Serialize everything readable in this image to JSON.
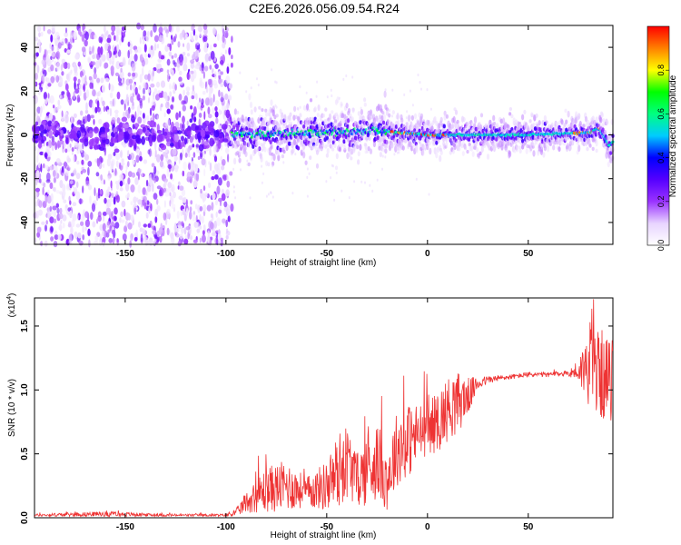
{
  "title": "C2E6.2026.056.09.54.R24",
  "chart_data": [
    {
      "type": "heatmap",
      "xlabel": "Height of straight line (km)",
      "ylabel": "Frequency (Hz)",
      "xlim": [
        -195,
        92
      ],
      "ylim": [
        -50,
        50
      ],
      "xticks": [
        -150,
        -100,
        -50,
        0,
        50
      ],
      "yticks": [
        -40,
        -20,
        0,
        20,
        40
      ],
      "colorbar": {
        "label": "Normalized spectral amplitude",
        "range": [
          0.0,
          1.0
        ],
        "ticks": [
          0.0,
          0.2,
          0.4,
          0.6,
          0.8
        ],
        "colormap": [
          "#ffffff",
          "#e8d4ff",
          "#9a33ff",
          "#5500ff",
          "#0000ff",
          "#00ccff",
          "#00ff80",
          "#00ff00",
          "#ffff00",
          "#ff8000",
          "#ff0000"
        ]
      },
      "description_points": {
        "noise_region_x": [
          -195,
          -97
        ],
        "ridge_x": [
          -95,
          -25,
          0,
          50,
          80,
          85,
          88,
          90,
          92
        ],
        "ridge_freq_hz": [
          0,
          2,
          0,
          0,
          1,
          3,
          -1,
          -5,
          -3
        ]
      }
    },
    {
      "type": "line",
      "xlabel": "Height of straight line (km)",
      "ylabel": "SNR (10 * v/v)",
      "y_multiplier_label": "(x10",
      "y_multiplier_exp": "4",
      "y_multiplier_close": ")",
      "xlim": [
        -195,
        92
      ],
      "ylim": [
        0,
        1.72
      ],
      "xticks": [
        -150,
        -100,
        -50,
        0,
        50
      ],
      "yticks": [
        "0.0",
        "0.5",
        "1.0",
        "1.5"
      ],
      "series": [
        {
          "color": "#ee3333",
          "x": [
            -195,
            -160,
            -130,
            -100,
            -95,
            -90,
            -80,
            -70,
            -60,
            -50,
            -45,
            -40,
            -35,
            -30,
            -25,
            -20,
            -15,
            -10,
            -5,
            0,
            5,
            10,
            15,
            20,
            25,
            30,
            40,
            50,
            60,
            70,
            75,
            80,
            85,
            90,
            92
          ],
          "y": [
            0.02,
            0.03,
            0.02,
            0.02,
            0.04,
            0.12,
            0.22,
            0.25,
            0.2,
            0.25,
            0.35,
            0.45,
            0.3,
            0.38,
            0.45,
            0.3,
            0.55,
            0.6,
            0.65,
            0.7,
            0.75,
            0.85,
            0.9,
            0.95,
            1.05,
            1.08,
            1.1,
            1.12,
            1.12,
            1.13,
            1.15,
            1.18,
            1.15,
            1.05,
            1.1
          ],
          "noise_amp": [
            0.01,
            0.02,
            0.01,
            0.01,
            0.03,
            0.08,
            0.18,
            0.2,
            0.12,
            0.2,
            0.3,
            0.3,
            0.2,
            0.3,
            0.3,
            0.25,
            0.3,
            0.3,
            0.25,
            0.2,
            0.25,
            0.25,
            0.25,
            0.15,
            0.05,
            0.03,
            0.02,
            0.02,
            0.02,
            0.02,
            0.1,
            0.3,
            0.35,
            0.35,
            0.3
          ]
        }
      ]
    }
  ]
}
